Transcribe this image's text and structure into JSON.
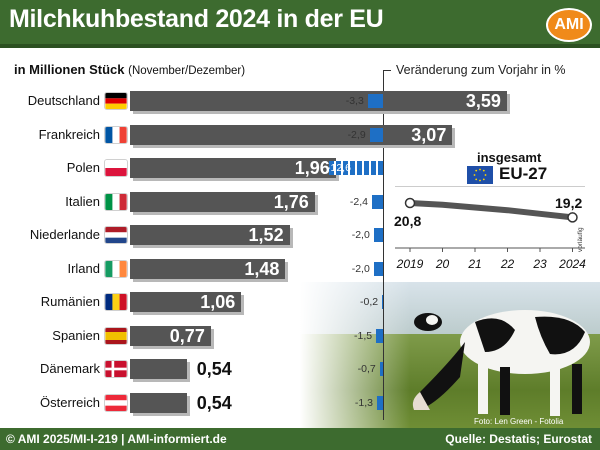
{
  "header": {
    "title": "Milchkuhbestand 2024 in der EU",
    "logo_text": "AMI"
  },
  "subtitle": {
    "unit": "in Millionen Stück",
    "note": "(November/Dezember)"
  },
  "change_title": "Veränderung zum Vorjahr in %",
  "colors": {
    "header_bg": "#3d6b2f",
    "bar": "#555555",
    "change_bar": "#1e6fc5",
    "logo": "#f08a1a"
  },
  "chart_data": [
    {
      "type": "bar",
      "orientation": "horizontal",
      "title": "Milchkuhbestand 2024 in der EU",
      "unit": "in Millionen Stück",
      "categories": [
        "Deutschland",
        "Frankreich",
        "Polen",
        "Italien",
        "Niederlande",
        "Irland",
        "Rumänien",
        "Spanien",
        "Dänemark",
        "Österreich"
      ],
      "values": [
        3.59,
        3.07,
        1.96,
        1.76,
        1.52,
        1.48,
        1.06,
        0.77,
        0.54,
        0.54
      ],
      "value_labels": [
        "3,59",
        "3,07",
        "1,96",
        "1,76",
        "1,52",
        "1,48",
        "1,06",
        "0,77",
        "0,54",
        "0,54"
      ],
      "flags": [
        "flag-de-icon",
        "flag-fr-icon",
        "flag-pl-icon",
        "flag-it-icon",
        "flag-nl-icon",
        "flag-ie-icon",
        "flag-ro-icon",
        "flag-es-icon",
        "flag-dk-icon",
        "flag-at-icon"
      ],
      "series": [
        {
          "values": [
            -3.3,
            -2.9,
            -12.6,
            -2.4,
            -2.0,
            -2.0,
            -0.2,
            -1.5,
            -0.7,
            -1.3
          ],
          "labels": [
            "-3,3",
            "-2,9",
            "-12,6",
            "-2,4",
            "-2,0",
            "-2,0",
            "-0,2",
            "-1,5",
            "-0,7",
            "-1,3"
          ]
        }
      ]
    },
    {
      "type": "line",
      "title": "insgesamt",
      "series_label": "EU-27",
      "x": [
        "2019",
        "20",
        "21",
        "22",
        "23",
        "2024"
      ],
      "values": [
        20.8,
        20.6,
        20.3,
        20.0,
        19.6,
        19.2
      ],
      "point_labels": {
        "first": "20,8",
        "last": "19,2"
      },
      "last_point_note": "vorläufig"
    }
  ],
  "photo_credit": "Foto: Len Green - Fotolia",
  "footer": {
    "left": "© AMI 2025/MI-I-219 | AMI-informiert.de",
    "right": "Quelle: Destatis; Eurostat"
  }
}
